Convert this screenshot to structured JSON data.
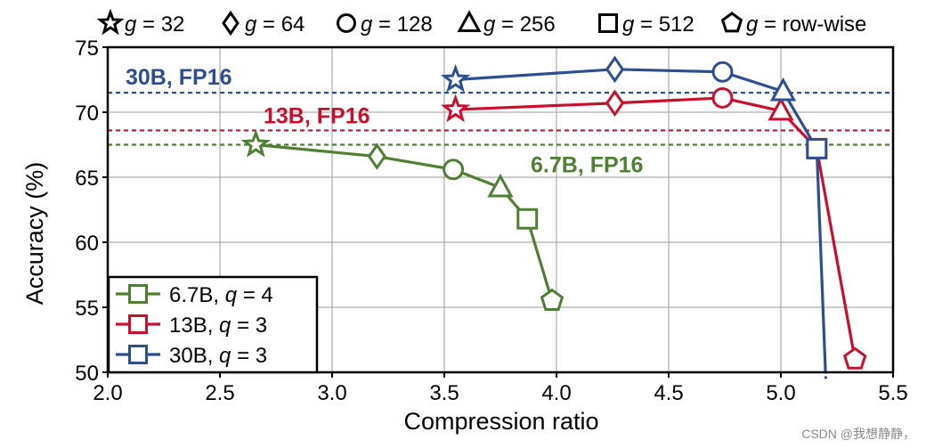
{
  "colors": {
    "green": "#4f7f33",
    "red": "#c8102e",
    "blue": "#2e4f8f",
    "grid": "#9a9a9a",
    "axis": "#000000"
  },
  "chart_data": {
    "type": "line",
    "xlabel": "Compression ratio",
    "ylabel": "Accuracy (%)",
    "xlim": [
      2.0,
      5.5
    ],
    "ylim": [
      50,
      75
    ],
    "xticks": [
      "2.0",
      "2.5",
      "3.0",
      "3.5",
      "4.0",
      "4.5",
      "5.0",
      "5.5"
    ],
    "yticks": [
      "50",
      "55",
      "60",
      "65",
      "70",
      "75"
    ],
    "grid": true,
    "marker_legend": {
      "prefix": "g",
      "items": [
        {
          "marker": "star",
          "label": " = 32"
        },
        {
          "marker": "diamond",
          "label": " = 64"
        },
        {
          "marker": "circle",
          "label": " = 128"
        },
        {
          "marker": "triangle",
          "label": " = 256"
        },
        {
          "marker": "square",
          "label": " = 512"
        },
        {
          "marker": "pentagon",
          "label": " = row-wise"
        }
      ]
    },
    "reference_lines": [
      {
        "name": "30B, FP16",
        "y": 71.5,
        "color": "blue"
      },
      {
        "name": "13B, FP16",
        "y": 68.6,
        "color": "red"
      },
      {
        "name": "6.7B, FP16",
        "y": 67.5,
        "color": "green"
      }
    ],
    "series": [
      {
        "name": "6.7B, ",
        "q_label": "q",
        "q_value": " = 4",
        "color": "green",
        "points": [
          {
            "x": 2.66,
            "y": 67.5,
            "marker": "star"
          },
          {
            "x": 3.2,
            "y": 66.6,
            "marker": "diamond"
          },
          {
            "x": 3.54,
            "y": 65.6,
            "marker": "circle"
          },
          {
            "x": 3.75,
            "y": 64.2,
            "marker": "triangle"
          },
          {
            "x": 3.87,
            "y": 61.8,
            "marker": "square"
          },
          {
            "x": 3.98,
            "y": 55.5,
            "marker": "pentagon"
          }
        ]
      },
      {
        "name": "13B,  ",
        "q_label": "q",
        "q_value": " = 3",
        "color": "red",
        "points": [
          {
            "x": 3.55,
            "y": 70.2,
            "marker": "star"
          },
          {
            "x": 4.26,
            "y": 70.7,
            "marker": "diamond"
          },
          {
            "x": 4.74,
            "y": 71.1,
            "marker": "circle"
          },
          {
            "x": 5.0,
            "y": 70.1,
            "marker": "triangle"
          },
          {
            "x": 5.16,
            "y": 67.2,
            "marker": "square"
          },
          {
            "x": 5.33,
            "y": 51.0,
            "marker": "pentagon"
          }
        ]
      },
      {
        "name": "30B,  ",
        "q_label": "q",
        "q_value": " = 3",
        "color": "blue",
        "points": [
          {
            "x": 3.55,
            "y": 72.5,
            "marker": "star"
          },
          {
            "x": 4.26,
            "y": 73.3,
            "marker": "diamond"
          },
          {
            "x": 4.74,
            "y": 73.1,
            "marker": "circle"
          },
          {
            "x": 5.01,
            "y": 71.6,
            "marker": "triangle"
          },
          {
            "x": 5.16,
            "y": 67.2,
            "marker": "square"
          },
          {
            "x": 5.2,
            "y": 49.5,
            "marker": "none"
          }
        ]
      }
    ]
  },
  "watermark": "CSDN @我想静静，"
}
